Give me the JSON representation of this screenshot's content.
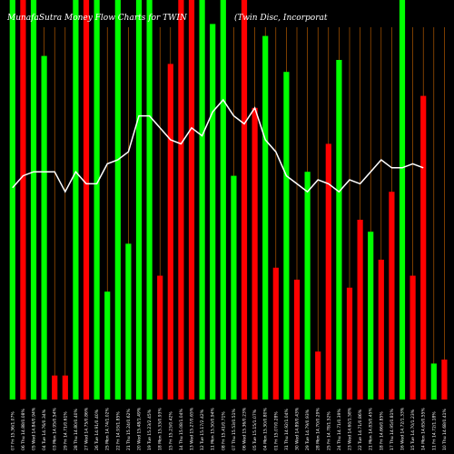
{
  "header": {
    "left": "MunafaSutra  Money Flow  Charts for TWIN",
    "right": "(Twin  Disc,  Incorporat"
  },
  "chart_data": {
    "type": "bar",
    "title": "MunafaSutra  Money Flow  Charts for TWIN",
    "subtitle": "(Twin  Disc,  Incorporat",
    "colors": {
      "up": "#00ff00",
      "down": "#ff0000",
      "line": "#ffffff",
      "grid": "#cc6600",
      "background": "#000000"
    },
    "ylim": [
      0,
      100
    ],
    "categories": [
      "07 Fri 15.36/1.07%",
      "06 Thu 14.88/0.08%",
      "05 Wed 14.84/0.94%",
      "04 Tue 14.76/0.34%",
      "03 Mon 14.95/0.54%",
      "29 Fri 14.71/0.61%",
      "28 Thu 14.80/0.40%",
      "27 Wed 14.75/0.86%",
      "26 Tue 14.91/0.40%",
      "25 Mon 14.74/1.02%",
      "22 Fri 14.93/1.85%",
      "21 Thu 15.24/0.62%",
      "20 Wed 15.48/1.49%",
      "19 Tue 15.23/2.45%",
      "18 Mon 15.33/0.93%",
      "15 Fri 15.23/0.42%",
      "14 Thu 15.08/1.04%",
      "13 Wed 15.27/0.65%",
      "12 Tue 15.17/2.42%",
      "11 Mon 15.50/0.94%",
      "08 Fri 15.41/0.71%",
      "07 Thu 15.53/0.51%",
      "06 Wed 15.36/0.23%",
      "05 Tue 15.15/1.07%",
      "04 Mon 15.30/0.80%",
      "01 Fri 15.07/0.28%",
      "31 Thu 14.92/1.04%",
      "30 Wed 14.89/0.43%",
      "29 Tue 14.79/0.93%",
      "28 Mon 14.70/0.29%",
      "25 Fri 14.78/1.52%",
      "24 Thu 14.71/0.39%",
      "23 Wed 14.60/1.58%",
      "22 Tue 14.71/0.86%",
      "21 Mon 14.83/0.45%",
      "18 Fri 14.66/0.85%",
      "17 Thu 14.95/0.81%",
      "16 Wed 14.72/1.33%",
      "15 Tue 14.70/1.23%",
      "14 Mon 14.65/0.55%",
      "11 Fri 14.72/1.18%",
      "10 Thu 14.68/0.41%"
    ],
    "values": [
      100,
      100,
      100,
      86,
      6,
      6,
      100,
      100,
      100,
      27,
      100,
      39,
      100,
      100,
      31,
      84,
      100,
      100,
      100,
      94,
      100,
      56,
      100,
      73,
      91,
      33,
      82,
      30,
      57,
      12,
      64,
      85,
      28,
      45,
      42,
      35,
      52,
      100,
      31,
      76,
      9,
      10
    ],
    "directions": [
      "up",
      "down",
      "up",
      "up",
      "down",
      "down",
      "up",
      "down",
      "up",
      "up",
      "up",
      "up",
      "up",
      "up",
      "down",
      "down",
      "down",
      "down",
      "up",
      "up",
      "up",
      "up",
      "down",
      "down",
      "up",
      "down",
      "up",
      "down",
      "up",
      "down",
      "down",
      "up",
      "down",
      "down",
      "up",
      "down",
      "down",
      "up",
      "down",
      "down",
      "up",
      "down"
    ],
    "flow_line": [
      53,
      56,
      57,
      57,
      57,
      52,
      57,
      54,
      54,
      59,
      60,
      62,
      71,
      71,
      68,
      65,
      64,
      68,
      66,
      72,
      75,
      71,
      69,
      73,
      65,
      62,
      56,
      54,
      52,
      55,
      54,
      52,
      55,
      54,
      57,
      60,
      58,
      58,
      59,
      58
    ]
  }
}
